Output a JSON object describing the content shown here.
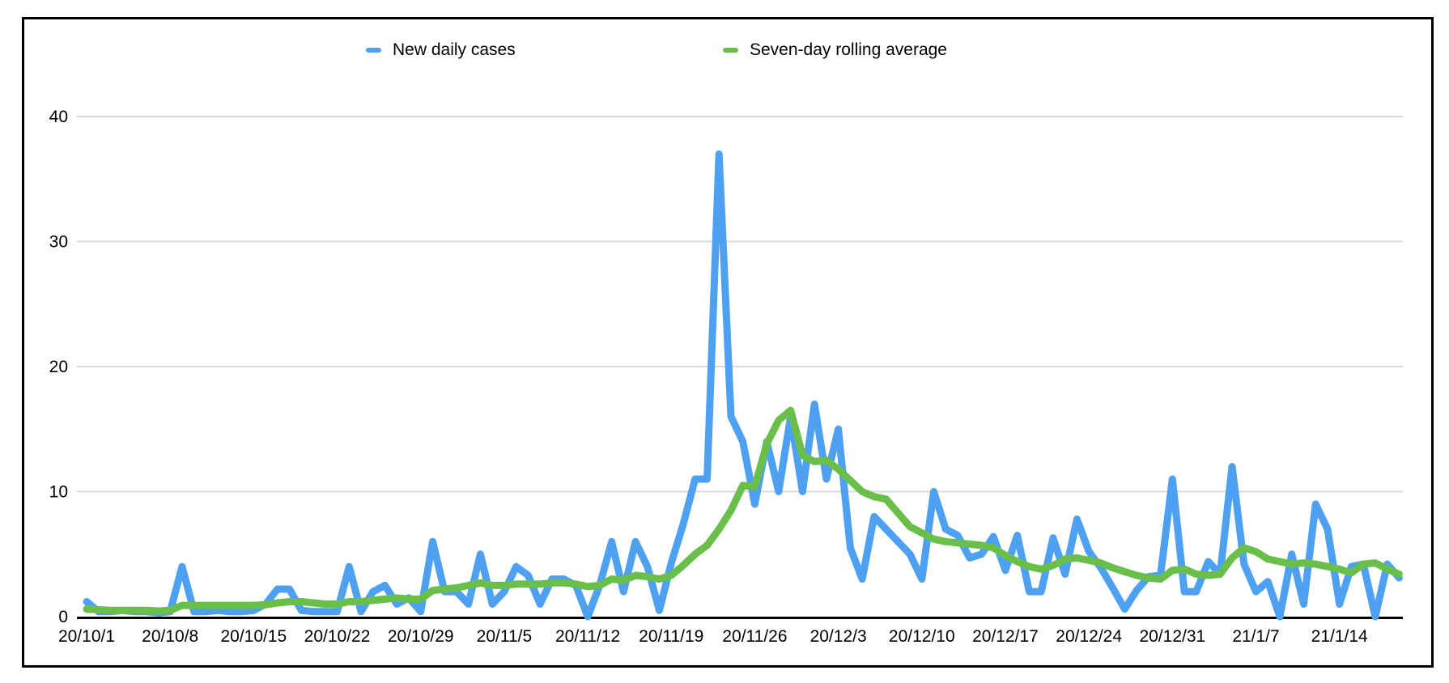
{
  "legend": {
    "items": [
      {
        "label": "New daily cases",
        "color": "#4ea1f0"
      },
      {
        "label": "Seven-day rolling average",
        "color": "#6abf4b"
      }
    ]
  },
  "colors": {
    "blue_series": "#4ea1f0",
    "green_series": "#6abf4b",
    "gridline": "#d9d9d9",
    "axis": "#000000",
    "frame": "#000000",
    "background": "#ffffff"
  },
  "chart_data": {
    "type": "line",
    "title": "",
    "xlabel": "",
    "ylabel": "",
    "ylim": [
      0,
      45
    ],
    "yticks": [
      0,
      10,
      20,
      30,
      40
    ],
    "grid": "horizontal",
    "legend_position": "top",
    "x_tick_labels": [
      "20/10/1",
      "20/10/8",
      "20/10/15",
      "20/10/22",
      "20/10/29",
      "20/11/5",
      "20/11/12",
      "20/11/19",
      "20/11/26",
      "20/12/3",
      "20/12/10",
      "20/12/17",
      "20/12/24",
      "20/12/31",
      "21/1/7",
      "21/1/14"
    ],
    "x_tick_interval_days": 7,
    "x": [
      "20/10/1",
      "20/10/2",
      "20/10/3",
      "20/10/4",
      "20/10/5",
      "20/10/6",
      "20/10/7",
      "20/10/8",
      "20/10/9",
      "20/10/10",
      "20/10/11",
      "20/10/12",
      "20/10/13",
      "20/10/14",
      "20/10/15",
      "20/10/16",
      "20/10/17",
      "20/10/18",
      "20/10/19",
      "20/10/20",
      "20/10/21",
      "20/10/22",
      "20/10/23",
      "20/10/24",
      "20/10/25",
      "20/10/26",
      "20/10/27",
      "20/10/28",
      "20/10/29",
      "20/10/30",
      "20/10/31",
      "20/11/1",
      "20/11/2",
      "20/11/3",
      "20/11/4",
      "20/11/5",
      "20/11/6",
      "20/11/7",
      "20/11/8",
      "20/11/9",
      "20/11/10",
      "20/11/11",
      "20/11/12",
      "20/11/13",
      "20/11/14",
      "20/11/15",
      "20/11/16",
      "20/11/17",
      "20/11/18",
      "20/11/19",
      "20/11/20",
      "20/11/21",
      "20/11/22",
      "20/11/23",
      "20/11/24",
      "20/11/25",
      "20/11/26",
      "20/11/27",
      "20/11/28",
      "20/11/29",
      "20/11/30",
      "20/12/1",
      "20/12/2",
      "20/12/3",
      "20/12/4",
      "20/12/5",
      "20/12/6",
      "20/12/7",
      "20/12/8",
      "20/12/9",
      "20/12/10",
      "20/12/11",
      "20/12/12",
      "20/12/13",
      "20/12/14",
      "20/12/15",
      "20/12/16",
      "20/12/17",
      "20/12/18",
      "20/12/19",
      "20/12/20",
      "20/12/21",
      "20/12/22",
      "20/12/23",
      "20/12/24",
      "20/12/25",
      "20/12/26",
      "20/12/27",
      "20/12/28",
      "20/12/29",
      "20/12/30",
      "20/12/31",
      "21/1/1",
      "21/1/2",
      "21/1/3",
      "21/1/4",
      "21/1/5",
      "21/1/6",
      "21/1/7",
      "21/1/8",
      "21/1/9",
      "21/1/10",
      "21/1/11",
      "21/1/12",
      "21/1/13",
      "21/1/14",
      "21/1/15",
      "21/1/16",
      "21/1/17",
      "21/1/18",
      "21/1/19"
    ],
    "series": [
      {
        "name": "New daily cases",
        "color": "#4ea1f0",
        "values": [
          1.2,
          0.4,
          0.4,
          0.5,
          0.4,
          0.4,
          0.3,
          0.4,
          4,
          0.4,
          0.4,
          0.5,
          0.4,
          0.4,
          0.5,
          1,
          2.2,
          2.2,
          0.5,
          0.4,
          0.4,
          0.4,
          4,
          0.4,
          2,
          2.5,
          1,
          1.5,
          0.4,
          6,
          2,
          2,
          1,
          5,
          1,
          2,
          4,
          3.3,
          1,
          3,
          3,
          2.5,
          0,
          2.5,
          6,
          2,
          6,
          4,
          0.5,
          4.3,
          7.4,
          11,
          11,
          37,
          16,
          14,
          9,
          14,
          10,
          16,
          10,
          17,
          11,
          15,
          5.5,
          3,
          8,
          7,
          6,
          5,
          3,
          10,
          7,
          6.5,
          4.7,
          5,
          6.4,
          3.7,
          6.5,
          2,
          2,
          6.3,
          3.4,
          7.8,
          5.2,
          3.9,
          2.3,
          0.6,
          2.1,
          3.2,
          3.3,
          11,
          2,
          2,
          4.4,
          3.4,
          12,
          4.2,
          2,
          2.8,
          0,
          5,
          1,
          9,
          7,
          1,
          4,
          4.2,
          0,
          4.2,
          3.1
        ]
      },
      {
        "name": "Seven-day rolling average",
        "color": "#6abf4b",
        "values": [
          0.6,
          0.55,
          0.5,
          0.5,
          0.5,
          0.5,
          0.45,
          0.5,
          0.9,
          0.9,
          0.9,
          0.9,
          0.9,
          0.9,
          0.9,
          0.95,
          1.1,
          1.2,
          1.2,
          1.1,
          1,
          1,
          1.2,
          1.2,
          1.3,
          1.4,
          1.5,
          1.4,
          1.4,
          2.1,
          2.2,
          2.3,
          2.5,
          2.7,
          2.5,
          2.5,
          2.6,
          2.6,
          2.6,
          2.7,
          2.7,
          2.6,
          2.4,
          2.5,
          3,
          2.9,
          3.3,
          3.2,
          3,
          3.3,
          4.1,
          5,
          5.7,
          7,
          8.5,
          10.5,
          10.4,
          13.8,
          15.7,
          16.5,
          12.9,
          12.4,
          12.5,
          11.8,
          10.9,
          10,
          9.6,
          9.4,
          8.3,
          7.2,
          6.7,
          6.2,
          6,
          5.9,
          5.8,
          5.7,
          5.5,
          4.9,
          4.4,
          4,
          3.8,
          4.1,
          4.6,
          4.7,
          4.5,
          4.3,
          3.9,
          3.6,
          3.3,
          3.1,
          3,
          3.7,
          3.8,
          3.4,
          3.3,
          3.4,
          4.7,
          5.5,
          5.2,
          4.6,
          4.4,
          4.2,
          4.3,
          4.2,
          4,
          3.8,
          3.5,
          4.2,
          4.3,
          3.8,
          3.4
        ]
      }
    ]
  }
}
